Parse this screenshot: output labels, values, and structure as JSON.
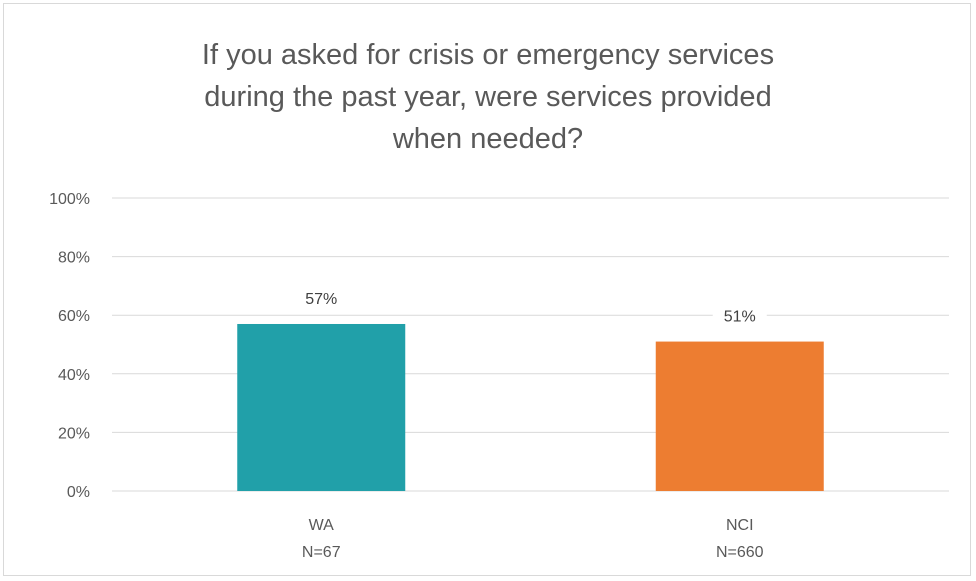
{
  "chart_data": {
    "type": "bar",
    "title": "If you asked for crisis or emergency services\nduring the past year, were services provided\nwhen needed?",
    "categories": [
      "WA",
      "NCI"
    ],
    "category_sublabels": [
      "N=67",
      "N=660"
    ],
    "values": [
      57,
      51
    ],
    "data_labels": [
      "57%",
      "51%"
    ],
    "colors": [
      "#21A0A9",
      "#ED7D31"
    ],
    "ylim": [
      0,
      100
    ],
    "yticks": [
      0,
      20,
      40,
      60,
      80,
      100
    ],
    "ytick_labels": [
      "0%",
      "20%",
      "40%",
      "60%",
      "80%",
      "100%"
    ],
    "grid": true,
    "legend": "none",
    "xlabel": "",
    "ylabel": ""
  }
}
